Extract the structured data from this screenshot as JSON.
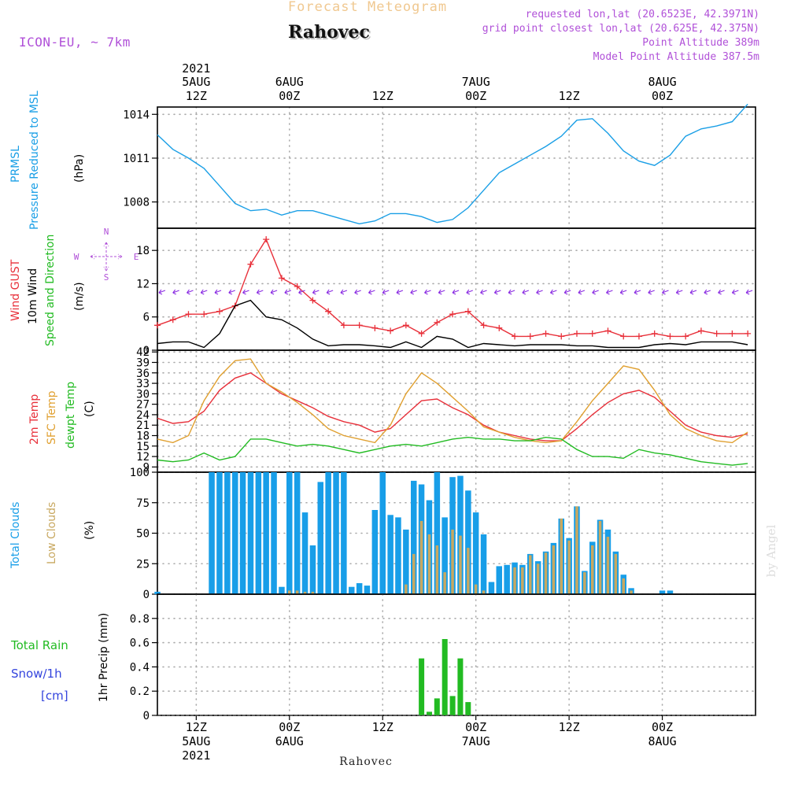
{
  "header": {
    "title_top": "Forecast Meteogram",
    "location": "Rahovec",
    "model": "ICON-EU, ~ 7km",
    "requested": "requested lon,lat (20.6523E, 42.3971N)",
    "grid_point": "grid point closest lon,lat (20.625E, 42.375N)",
    "point_altitude": "Point Altitude 389m",
    "model_altitude": "Model Point Altitude 387.5m",
    "watermark": "by Angel",
    "footer_location": "Rahovec"
  },
  "colors": {
    "pressure": "#1a9fe6",
    "gust": "#e8303a",
    "wind": "#000000",
    "temp": "#e8303a",
    "sfc_temp": "#e0a030",
    "dewpoint": "#22bb22",
    "total_clouds": "#189ee8",
    "low_clouds": "#c8a860",
    "rain": "#22bb22",
    "snow": "#3344dd",
    "title_orange": "#f0c890",
    "info_purple": "#b050d8",
    "wind_arrow": "#8a2be2"
  },
  "time_axis": {
    "top_labels": [
      {
        "l1": "2021",
        "l2": "5AUG",
        "l3": "12Z"
      },
      {
        "l1": "",
        "l2": "6AUG",
        "l3": "00Z"
      },
      {
        "l1": "",
        "l2": "",
        "l3": "12Z"
      },
      {
        "l1": "",
        "l2": "7AUG",
        "l3": "00Z"
      },
      {
        "l1": "",
        "l2": "",
        "l3": "12Z"
      },
      {
        "l1": "",
        "l2": "8AUG",
        "l3": "00Z"
      }
    ],
    "bottom_labels": [
      {
        "l1": "12Z",
        "l2": "5AUG",
        "l3": "2021"
      },
      {
        "l1": "00Z",
        "l2": "6AUG",
        "l3": ""
      },
      {
        "l1": "12Z",
        "l2": "",
        "l3": ""
      },
      {
        "l1": "00Z",
        "l2": "7AUG",
        "l3": ""
      },
      {
        "l1": "12Z",
        "l2": "",
        "l3": ""
      },
      {
        "l1": "00Z",
        "l2": "8AUG",
        "l3": ""
      }
    ]
  },
  "chart_data": [
    {
      "type": "line",
      "panel": "pressure",
      "ylabel_lines": [
        "PRMSL",
        "Pressure Reduced to MSL"
      ],
      "unit": "(hPa)",
      "ylim": [
        1006.2,
        1014.5
      ],
      "yticks": [
        1008,
        1011,
        1014
      ],
      "x_hours": [
        0,
        2,
        4,
        6,
        8,
        10,
        12,
        14,
        16,
        18,
        20,
        22,
        24,
        26,
        28,
        30,
        32,
        34,
        36,
        38,
        40,
        42,
        44,
        46,
        48,
        50,
        52,
        54,
        56,
        58,
        60,
        62,
        64,
        66,
        68,
        70,
        72,
        74,
        76
      ],
      "series": [
        {
          "name": "PRMSL",
          "values": [
            1012.6,
            1011.6,
            1011.0,
            1010.3,
            1009.1,
            1007.9,
            1007.4,
            1007.5,
            1007.1,
            1007.4,
            1007.4,
            1007.1,
            1006.8,
            1006.5,
            1006.7,
            1007.2,
            1007.2,
            1007.0,
            1006.6,
            1006.8,
            1007.6,
            1008.8,
            1010.0,
            1010.6,
            1011.2,
            1011.8,
            1012.5,
            1013.6,
            1013.7,
            1012.7,
            1011.5,
            1010.8,
            1010.5,
            1011.2,
            1012.5,
            1013.0,
            1013.2,
            1013.5,
            1014.7
          ]
        }
      ]
    },
    {
      "type": "line",
      "panel": "wind",
      "ylabel_lines": [
        "Wind GUST",
        "10m Wind",
        "Speed and Direction"
      ],
      "unit": "(m/s)",
      "compass": {
        "n": "N",
        "s": "S",
        "e": "E",
        "w": "W"
      },
      "ylim": [
        0,
        22
      ],
      "yticks": [
        0,
        6,
        12,
        18
      ],
      "x_hours": [
        0,
        2,
        4,
        6,
        8,
        10,
        12,
        14,
        16,
        18,
        20,
        22,
        24,
        26,
        28,
        30,
        32,
        34,
        36,
        38,
        40,
        42,
        44,
        46,
        48,
        50,
        52,
        54,
        56,
        58,
        60,
        62,
        64,
        66,
        68,
        70,
        72,
        74,
        76
      ],
      "series": [
        {
          "name": "Wind GUST",
          "values": [
            4.5,
            5.5,
            6.5,
            6.5,
            7.0,
            8.0,
            15.5,
            20.0,
            13.0,
            11.5,
            9.0,
            7.0,
            4.5,
            4.5,
            4.0,
            3.5,
            4.5,
            3.0,
            5.0,
            6.5,
            7.0,
            4.5,
            4.0,
            2.5,
            2.5,
            3.0,
            2.5,
            3.0,
            3.0,
            3.5,
            2.5,
            2.5,
            3.0,
            2.5,
            2.5,
            3.5,
            3.0,
            3.0,
            3.0
          ]
        },
        {
          "name": "10m Wind",
          "values": [
            1.2,
            1.5,
            1.5,
            0.5,
            3.0,
            8.0,
            9.0,
            6.0,
            5.5,
            4.0,
            2.0,
            0.8,
            1.0,
            1.0,
            0.8,
            0.5,
            1.5,
            0.5,
            2.5,
            2.0,
            0.5,
            1.2,
            1.0,
            0.8,
            1.0,
            1.0,
            1.0,
            0.8,
            0.8,
            0.5,
            0.5,
            0.5,
            1.0,
            1.2,
            1.0,
            1.5,
            1.5,
            1.5,
            1.0
          ]
        }
      ]
    },
    {
      "type": "line",
      "panel": "temperature",
      "ylabel_lines": [
        "2m Temp",
        "SFC Temp",
        "dewpt Temp"
      ],
      "unit": "(C)",
      "ylim": [
        7.5,
        42.5
      ],
      "yticks": [
        9,
        12,
        15,
        18,
        21,
        24,
        27,
        30,
        33,
        36,
        39,
        42
      ],
      "x_hours": [
        0,
        2,
        4,
        6,
        8,
        10,
        12,
        14,
        16,
        18,
        20,
        22,
        24,
        26,
        28,
        30,
        32,
        34,
        36,
        38,
        40,
        42,
        44,
        46,
        48,
        50,
        52,
        54,
        56,
        58,
        60,
        62,
        64,
        66,
        68,
        70,
        72,
        74,
        76
      ],
      "series": [
        {
          "name": "2m Temp",
          "values": [
            23,
            21.5,
            22,
            25,
            31,
            34.5,
            36,
            33,
            30,
            28,
            26,
            23.5,
            22,
            21,
            19,
            20,
            24,
            28,
            28.5,
            26,
            24,
            21,
            19,
            18,
            17,
            16.5,
            16.5,
            20,
            24,
            27.5,
            30,
            31,
            29,
            25,
            21,
            19,
            18,
            17.5,
            18.5
          ]
        },
        {
          "name": "SFC Temp",
          "values": [
            17,
            16,
            18,
            28,
            35,
            39.5,
            40,
            33,
            30.5,
            27.5,
            24,
            20,
            18,
            17,
            16,
            21,
            30,
            36,
            33,
            29,
            25,
            20.5,
            19,
            17.5,
            16.5,
            16,
            16.5,
            22,
            28,
            33,
            38,
            37,
            31,
            24,
            20,
            18,
            16.5,
            16,
            19
          ]
        },
        {
          "name": "dewpt Temp",
          "values": [
            11,
            10.5,
            11,
            13,
            11,
            12,
            17,
            17,
            16,
            15,
            15.5,
            15,
            14,
            13,
            14,
            15,
            15.5,
            15,
            16,
            17,
            17.5,
            17,
            17,
            16.5,
            16.5,
            17.5,
            17,
            14,
            12,
            12,
            11.5,
            14,
            13,
            12.5,
            11.5,
            10.5,
            10,
            9.5,
            10
          ]
        }
      ]
    },
    {
      "type": "bar",
      "panel": "clouds",
      "ylabel_lines": [
        "Total Clouds",
        "Low Clouds"
      ],
      "unit": "(%)",
      "ylim": [
        0,
        100
      ],
      "yticks": [
        0,
        25,
        50,
        75,
        100
      ],
      "x_hours": [
        0,
        1,
        2,
        3,
        4,
        5,
        6,
        7,
        8,
        9,
        10,
        11,
        12,
        13,
        14,
        15,
        16,
        17,
        18,
        19,
        20,
        21,
        22,
        23,
        24,
        25,
        26,
        27,
        28,
        29,
        30,
        31,
        32,
        33,
        34,
        35,
        36,
        37,
        38,
        39,
        40,
        41,
        42,
        43,
        44,
        45,
        46,
        47,
        48,
        49,
        50,
        51,
        52,
        53,
        54,
        55,
        56,
        57,
        58,
        59,
        60,
        61,
        62,
        63,
        64,
        65,
        66,
        67,
        68,
        69,
        70,
        71,
        72,
        73,
        74,
        75,
        76
      ],
      "series": [
        {
          "name": "Total Clouds",
          "values": [
            2,
            0,
            0,
            0,
            0,
            0,
            0,
            100,
            100,
            100,
            100,
            100,
            100,
            100,
            100,
            100,
            6,
            100,
            100,
            67,
            40,
            92,
            100,
            100,
            100,
            6,
            9,
            7,
            69,
            100,
            65,
            63,
            53,
            93,
            90,
            77,
            100,
            63,
            96,
            97,
            85,
            67,
            49,
            10,
            23,
            24,
            26,
            24,
            33,
            27,
            35,
            42,
            62,
            46,
            72,
            19,
            43,
            61,
            53,
            35,
            16,
            5,
            0,
            0,
            0,
            3,
            3,
            0,
            0,
            0,
            0,
            0,
            0,
            0,
            0,
            0,
            0
          ]
        },
        {
          "name": "Low Clouds",
          "values": [
            0,
            0,
            0,
            0,
            0,
            0,
            0,
            0,
            0,
            0,
            0,
            0,
            0,
            0,
            0,
            0,
            0,
            3,
            3,
            2,
            2,
            0,
            0,
            0,
            0,
            0,
            0,
            0,
            0,
            0,
            0,
            0,
            8,
            33,
            60,
            49,
            40,
            18,
            53,
            48,
            38,
            8,
            3,
            0,
            0,
            0,
            22,
            22,
            32,
            25,
            34,
            40,
            62,
            44,
            72,
            18,
            40,
            60,
            47,
            33,
            13,
            3,
            0,
            0,
            0,
            0,
            0,
            0,
            0,
            0,
            0,
            0,
            0,
            0,
            0,
            0,
            0
          ]
        }
      ]
    },
    {
      "type": "bar",
      "panel": "precipitation",
      "ylabel_lines": [
        "1hr Precip (mm)"
      ],
      "legend": {
        "rain_label": "Total   Rain",
        "snow_label": "Snow/1h",
        "snow_unit": "[cm]"
      },
      "ylim": [
        0,
        1.0
      ],
      "yticks": [
        0,
        0.2,
        0.4,
        0.6,
        0.8
      ],
      "x_hours": [
        34,
        35,
        36,
        37,
        38,
        39,
        40
      ],
      "series": [
        {
          "name": "Total Rain",
          "values": [
            0.47,
            0.03,
            0.14,
            0.63,
            0.16,
            0.47,
            0.11
          ]
        }
      ]
    }
  ]
}
